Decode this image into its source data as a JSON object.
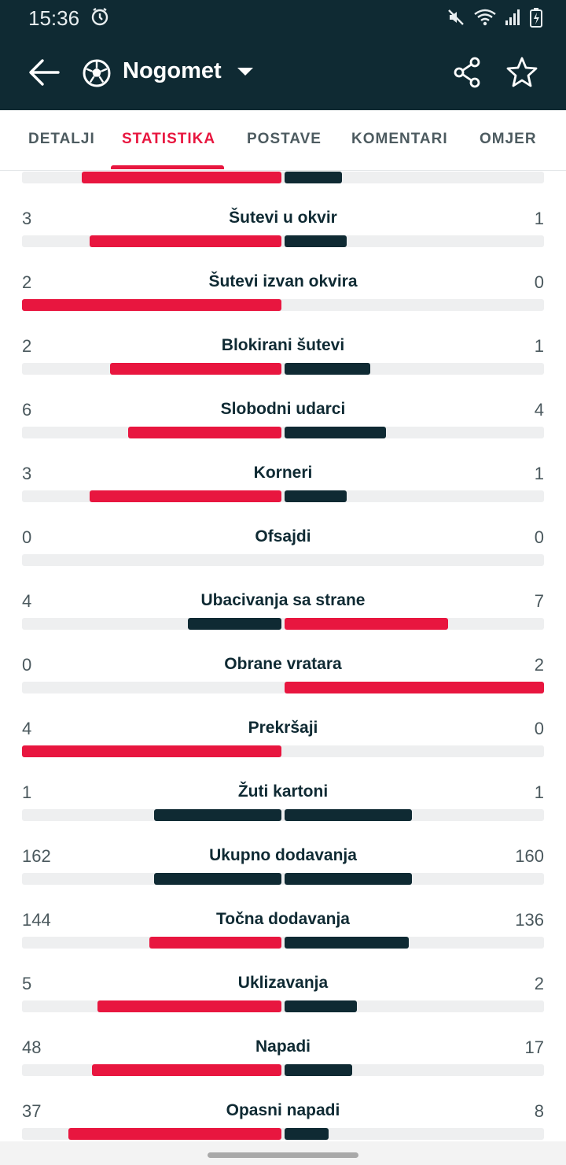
{
  "status_bar": {
    "time": "15:36",
    "icons": [
      "alarm-icon",
      "mute-icon",
      "wifi-icon",
      "signal-icon",
      "battery-icon"
    ]
  },
  "app_bar": {
    "title": "Nogomet",
    "icons": [
      "back-arrow-icon",
      "soccer-ball-icon",
      "caret-down-icon",
      "share-icon",
      "star-icon"
    ]
  },
  "tabs": [
    {
      "label": "DETALJI",
      "active": false
    },
    {
      "label": "STATISTIKA",
      "active": true
    },
    {
      "label": "POSTAVE",
      "active": false
    },
    {
      "label": "KOMENTARI",
      "active": false
    },
    {
      "label": "OMJER",
      "active": false
    }
  ],
  "colors": {
    "dark": "#0f2a33",
    "accent": "#e8163f",
    "track": "#eeeff0"
  },
  "stats_partial_top": {
    "left_share": 0.77,
    "right_share": 0.22,
    "left_color": "accent",
    "right_color": "dark"
  },
  "stats": [
    {
      "label": "Šutevi u okvir",
      "home": "3",
      "away": "1",
      "left_share": 0.74,
      "right_share": 0.24
    },
    {
      "label": "Šutevi izvan okvira",
      "home": "2",
      "away": "0",
      "left_share": 1.0,
      "right_share": 0.0
    },
    {
      "label": "Blokirani šutevi",
      "home": "2",
      "away": "1",
      "left_share": 0.66,
      "right_share": 0.33
    },
    {
      "label": "Slobodni udarci",
      "home": "6",
      "away": "4",
      "left_share": 0.59,
      "right_share": 0.39
    },
    {
      "label": "Korneri",
      "home": "3",
      "away": "1",
      "left_share": 0.74,
      "right_share": 0.24
    },
    {
      "label": "Ofsajdi",
      "home": "0",
      "away": "0",
      "left_share": 0.0,
      "right_share": 0.0
    },
    {
      "label": "Ubacivanja sa strane",
      "home": "4",
      "away": "7",
      "left_share": 0.36,
      "right_share": 0.63
    },
    {
      "label": "Obrane vratara",
      "home": "0",
      "away": "2",
      "left_share": 0.0,
      "right_share": 1.0
    },
    {
      "label": "Prekršaji",
      "home": "4",
      "away": "0",
      "left_share": 1.0,
      "right_share": 0.0
    },
    {
      "label": "Žuti kartoni",
      "home": "1",
      "away": "1",
      "left_share": 0.49,
      "right_share": 0.49
    },
    {
      "label": "Ukupno dodavanja",
      "home": "162",
      "away": "160",
      "left_share": 0.49,
      "right_share": 0.49
    },
    {
      "label": "Točna dodavanja",
      "home": "144",
      "away": "136",
      "left_share": 0.51,
      "right_share": 0.48
    },
    {
      "label": "Uklizavanja",
      "home": "5",
      "away": "2",
      "left_share": 0.71,
      "right_share": 0.28
    },
    {
      "label": "Napadi",
      "home": "48",
      "away": "17",
      "left_share": 0.73,
      "right_share": 0.26
    },
    {
      "label": "Opasni napadi",
      "home": "37",
      "away": "8",
      "left_share": 0.82,
      "right_share": 0.17
    }
  ]
}
